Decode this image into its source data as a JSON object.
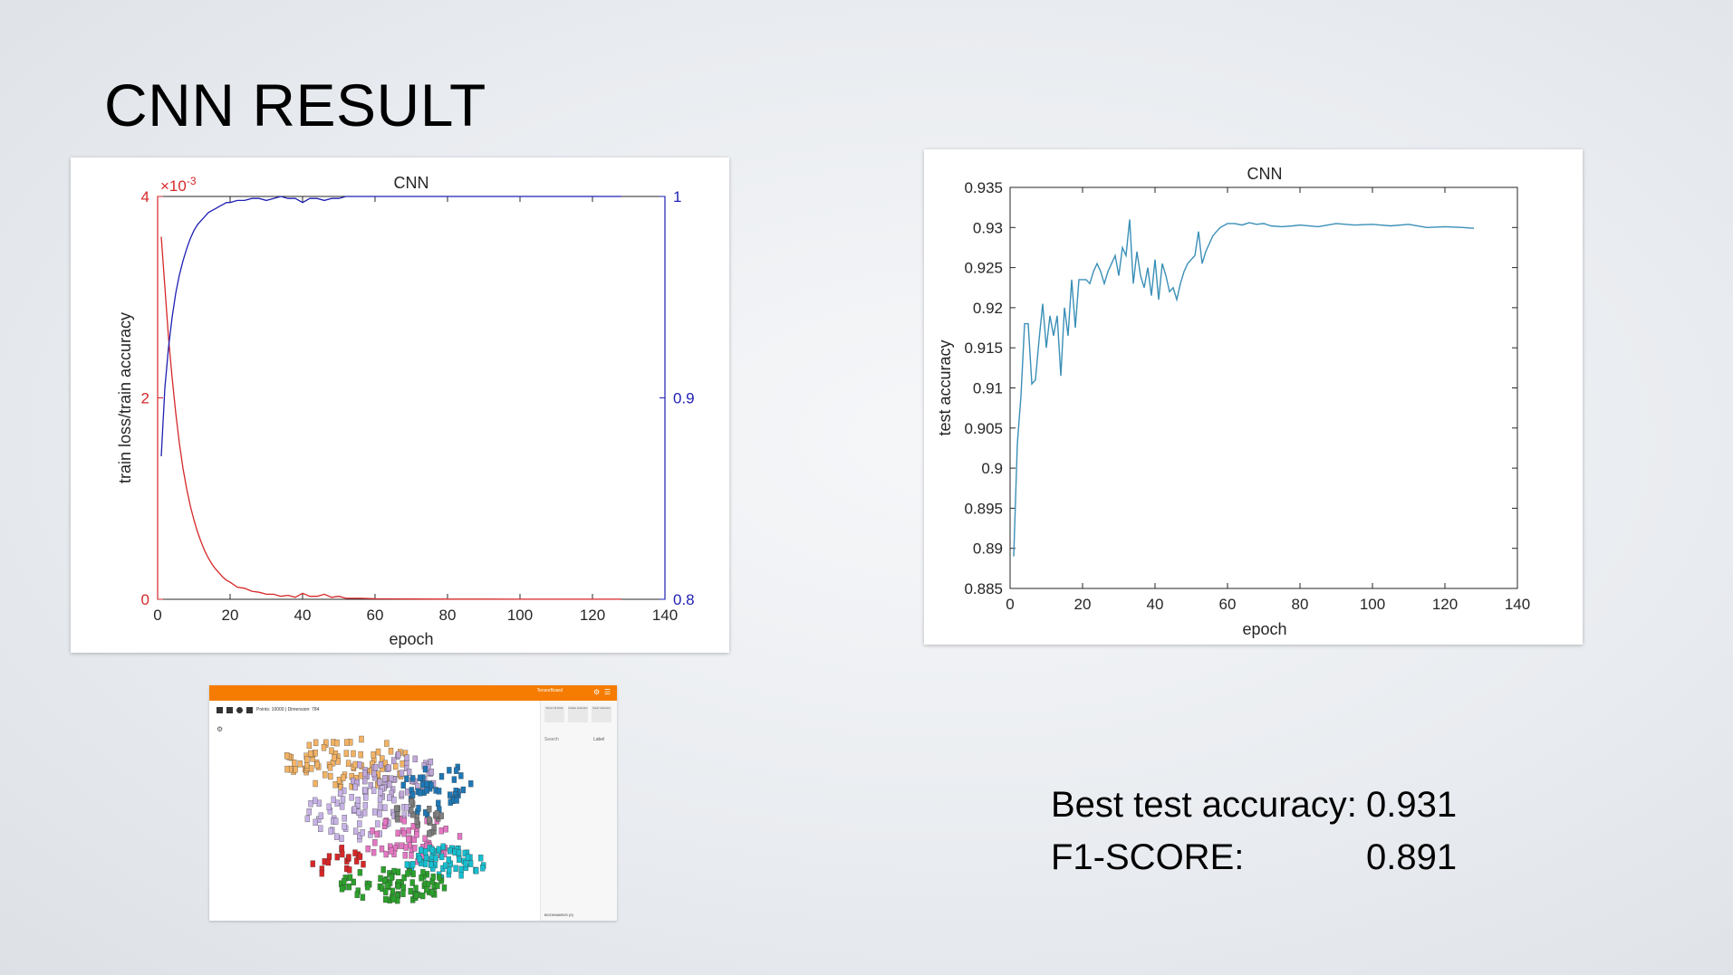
{
  "slide": {
    "title": "CNN RESULT"
  },
  "metrics": [
    {
      "label": "Best test accuracy:",
      "value": "0.931"
    },
    {
      "label": "F1-SCORE:",
      "value": "0.891"
    }
  ],
  "colors": {
    "loss": "#d62728",
    "train_accuracy": "#1f1fb4",
    "test_accuracy": "#3a8fb7",
    "thumbnail_bar": "#f57c00"
  },
  "thumbnail": {
    "bar_text": "TensorBoard",
    "toolbar_text": "Points: 10000 | Dimension: 784",
    "side_buttons": [
      "Show All Data",
      "Isolate selection",
      "Clear selection"
    ],
    "search_placeholder": "Search",
    "label_select": "Label",
    "bookmarks": "BOOKMARKS (0)"
  },
  "chart_data": [
    {
      "type": "line",
      "title": "CNN",
      "xlabel": "epoch",
      "ylabel": "train loss/train accuracy",
      "xlim": [
        0,
        140
      ],
      "xticks": [
        "0",
        "20",
        "40",
        "60",
        "80",
        "100",
        "120",
        "140"
      ],
      "left_axis": {
        "ylim": [
          0,
          4
        ],
        "ticks": [
          "0",
          "2",
          "4"
        ],
        "multiplier": "×10",
        "multiplier_exp": "-3",
        "color": "#d62728"
      },
      "right_axis": {
        "ylim": [
          0.8,
          1.0
        ],
        "ticks": [
          "0.8",
          "0.9",
          "1"
        ],
        "color": "#1f1fb4"
      },
      "series": [
        {
          "axis": "left",
          "x": [
            1,
            2,
            3,
            4,
            5,
            6,
            7,
            8,
            9,
            10,
            11,
            12,
            13,
            14,
            15,
            16,
            17,
            18,
            19,
            20,
            22,
            24,
            26,
            28,
            30,
            32,
            34,
            36,
            38,
            40,
            42,
            44,
            46,
            48,
            50,
            52,
            54,
            56,
            60,
            70,
            80,
            90,
            100,
            110,
            120,
            128
          ],
          "values": [
            3.6,
            3.1,
            2.6,
            2.2,
            1.85,
            1.55,
            1.3,
            1.1,
            0.93,
            0.79,
            0.67,
            0.57,
            0.48,
            0.41,
            0.35,
            0.3,
            0.26,
            0.22,
            0.19,
            0.17,
            0.12,
            0.11,
            0.08,
            0.07,
            0.05,
            0.05,
            0.03,
            0.04,
            0.02,
            0.06,
            0.03,
            0.03,
            0.05,
            0.02,
            0.03,
            0.01,
            0.01,
            0.01,
            0.005,
            0.003,
            0.002,
            0.002,
            0.001,
            0.001,
            0.001,
            0.001
          ]
        },
        {
          "axis": "right",
          "x": [
            1,
            2,
            3,
            4,
            5,
            6,
            7,
            8,
            9,
            10,
            11,
            12,
            13,
            14,
            15,
            16,
            17,
            18,
            19,
            20,
            22,
            24,
            26,
            28,
            30,
            32,
            34,
            36,
            38,
            40,
            42,
            44,
            46,
            48,
            50,
            52,
            54,
            56,
            60,
            70,
            80,
            90,
            100,
            110,
            120,
            128
          ],
          "values": [
            0.871,
            0.905,
            0.925,
            0.94,
            0.952,
            0.961,
            0.968,
            0.974,
            0.979,
            0.983,
            0.986,
            0.988,
            0.99,
            0.992,
            0.993,
            0.994,
            0.995,
            0.996,
            0.997,
            0.997,
            0.998,
            0.998,
            0.999,
            0.999,
            0.998,
            0.999,
            1.0,
            0.999,
            0.999,
            0.997,
            0.999,
            0.999,
            0.998,
            0.999,
            0.999,
            1.0,
            1.0,
            1.0,
            1.0,
            1.0,
            1.0,
            1.0,
            1.0,
            1.0,
            1.0,
            1.0
          ]
        }
      ]
    },
    {
      "type": "line",
      "title": "CNN",
      "xlabel": "epoch",
      "ylabel": "test accuracy",
      "xlim": [
        0,
        140
      ],
      "ylim": [
        0.885,
        0.935
      ],
      "xticks": [
        "0",
        "20",
        "40",
        "60",
        "80",
        "100",
        "120",
        "140"
      ],
      "yticks": [
        "0.885",
        "0.89",
        "0.895",
        "0.9",
        "0.905",
        "0.91",
        "0.915",
        "0.92",
        "0.925",
        "0.93",
        "0.935"
      ],
      "series": [
        {
          "x": [
            1,
            2,
            3,
            4,
            5,
            6,
            7,
            8,
            9,
            10,
            11,
            12,
            13,
            14,
            15,
            16,
            17,
            18,
            19,
            20,
            21,
            22,
            23,
            24,
            25,
            26,
            27,
            28,
            29,
            30,
            31,
            32,
            33,
            34,
            35,
            36,
            37,
            38,
            39,
            40,
            41,
            42,
            43,
            44,
            45,
            46,
            47,
            48,
            49,
            50,
            51,
            52,
            53,
            54,
            55,
            56,
            57,
            58,
            60,
            62,
            64,
            66,
            68,
            70,
            72,
            75,
            78,
            80,
            85,
            90,
            95,
            100,
            105,
            110,
            115,
            120,
            125,
            128
          ],
          "values": [
            0.889,
            0.903,
            0.909,
            0.918,
            0.918,
            0.9105,
            0.911,
            0.916,
            0.9205,
            0.915,
            0.919,
            0.9165,
            0.919,
            0.9115,
            0.92,
            0.9165,
            0.9235,
            0.9175,
            0.9235,
            0.9235,
            0.9235,
            0.923,
            0.9245,
            0.9255,
            0.9245,
            0.923,
            0.9245,
            0.9255,
            0.9265,
            0.924,
            0.9275,
            0.9265,
            0.931,
            0.923,
            0.927,
            0.924,
            0.9225,
            0.925,
            0.9215,
            0.926,
            0.921,
            0.9255,
            0.924,
            0.922,
            0.9225,
            0.921,
            0.923,
            0.9245,
            0.9255,
            0.926,
            0.9265,
            0.9295,
            0.9255,
            0.927,
            0.928,
            0.929,
            0.9295,
            0.93,
            0.9305,
            0.9305,
            0.9303,
            0.9306,
            0.9304,
            0.9305,
            0.9302,
            0.9301,
            0.9302,
            0.9303,
            0.9301,
            0.9305,
            0.9303,
            0.9304,
            0.9302,
            0.9304,
            0.93,
            0.9301,
            0.93,
            0.9299
          ]
        }
      ]
    }
  ]
}
